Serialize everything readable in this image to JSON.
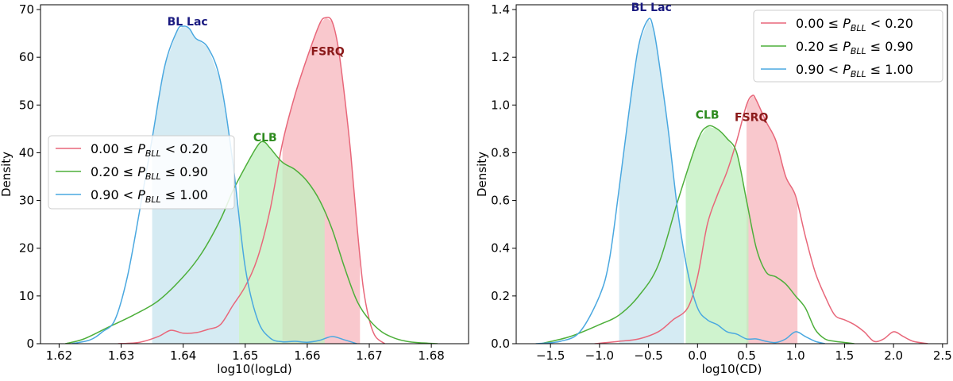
{
  "chart_data": [
    {
      "type": "area",
      "title": "",
      "xlabel": "log10(logLd)",
      "ylabel": "Density",
      "xlim": [
        1.617,
        1.686
      ],
      "ylim": [
        0,
        71
      ],
      "xticks": [
        1.62,
        1.63,
        1.64,
        1.65,
        1.66,
        1.67,
        1.68
      ],
      "yticks": [
        0,
        10,
        20,
        30,
        40,
        50,
        60,
        70
      ],
      "xtick_labels": [
        "1.62",
        "1.63",
        "1.64",
        "1.65",
        "1.66",
        "1.67",
        "1.68"
      ],
      "ytick_labels": [
        "0",
        "10",
        "20",
        "30",
        "40",
        "50",
        "60",
        "70"
      ],
      "legend_position": "center-left",
      "series": [
        {
          "id": "fsrq",
          "legend": {
            "range_low": "0.00 ≤ ",
            "var": "P",
            "sub": "BLL",
            "range_high": " < 0.20"
          },
          "color": "#e8677a",
          "fill": "#f7b9bf",
          "shade_range": [
            1.656,
            1.6685
          ],
          "x": [
            1.6295,
            1.633,
            1.636,
            1.638,
            1.64,
            1.642,
            1.644,
            1.646,
            1.648,
            1.65,
            1.652,
            1.654,
            1.656,
            1.658,
            1.66,
            1.662,
            1.663,
            1.664,
            1.665,
            1.666,
            1.667,
            1.668,
            1.669,
            1.67,
            1.671,
            1.6725
          ],
          "y": [
            0,
            0.3,
            1.5,
            2.8,
            2.2,
            2.3,
            3,
            4,
            8,
            12,
            18,
            28,
            42,
            52,
            60,
            67,
            68.3,
            67.5,
            62,
            52,
            40,
            25,
            12,
            5,
            1.5,
            0
          ]
        },
        {
          "id": "clb",
          "legend": {
            "range_low": "0.20 ≤ ",
            "var": "P",
            "sub": "BLL",
            "range_high": " ≤ 0.90"
          },
          "color": "#4daf3a",
          "fill": "#c2f0c0",
          "shade_range": [
            1.649,
            1.6628
          ],
          "x": [
            1.621,
            1.624,
            1.628,
            1.632,
            1.636,
            1.64,
            1.643,
            1.646,
            1.648,
            1.65,
            1.652,
            1.653,
            1.654,
            1.656,
            1.658,
            1.66,
            1.662,
            1.664,
            1.666,
            1.668,
            1.67,
            1.672,
            1.674,
            1.676,
            1.678,
            1.681
          ],
          "y": [
            0,
            1,
            3.5,
            6,
            9,
            14,
            19,
            26,
            32,
            37,
            41.5,
            42.3,
            41,
            38,
            36.5,
            34,
            30,
            24,
            16,
            9,
            5,
            2.5,
            1.2,
            0.5,
            0.2,
            0
          ]
        },
        {
          "id": "bllac",
          "legend": {
            "range_low": "0.90 < ",
            "var": "P",
            "sub": "BLL",
            "range_high": " ≤ 1.00"
          },
          "color": "#4aa8e0",
          "fill": "#c9e5f0",
          "shade_range": [
            1.635,
            1.649
          ],
          "x": [
            1.622,
            1.625,
            1.627,
            1.629,
            1.631,
            1.633,
            1.635,
            1.637,
            1.639,
            1.64,
            1.641,
            1.642,
            1.644,
            1.646,
            1.648,
            1.65,
            1.652,
            1.654,
            1.656,
            1.658,
            1.66,
            1.662,
            1.664,
            1.666,
            1.668
          ],
          "y": [
            0,
            0.8,
            2.5,
            5,
            14,
            28,
            43,
            58,
            65.5,
            66.5,
            66,
            64,
            62,
            55,
            38,
            16,
            5,
            1.2,
            0.4,
            0.5,
            0.3,
            0.7,
            1.5,
            0.8,
            0
          ]
        }
      ],
      "annotations": [
        {
          "text": "BL Lac",
          "x": 1.6407,
          "y": 67.5,
          "color": "#1a1a80"
        },
        {
          "text": "FSRQ",
          "x": 1.6633,
          "y": 61.3,
          "color": "#8b1a1a"
        },
        {
          "text": "CLB",
          "x": 1.6532,
          "y": 43.2,
          "color": "#2e8b1f"
        }
      ]
    },
    {
      "type": "area",
      "title": "",
      "xlabel": "log10(CD)",
      "ylabel": "Density",
      "xlim": [
        -1.85,
        2.55
      ],
      "ylim": [
        0,
        1.42
      ],
      "xticks": [
        -1.5,
        -1.0,
        -0.5,
        0.0,
        0.5,
        1.0,
        1.5,
        2.0,
        2.5
      ],
      "yticks": [
        0.0,
        0.2,
        0.4,
        0.6,
        0.8,
        1.0,
        1.2,
        1.4
      ],
      "xtick_labels": [
        "−1.5",
        "−1.0",
        "−0.5",
        "0.0",
        "0.5",
        "1.0",
        "1.5",
        "2.0",
        "2.5"
      ],
      "ytick_labels": [
        "0.0",
        "0.2",
        "0.4",
        "0.6",
        "0.8",
        "1.0",
        "1.2",
        "1.4"
      ],
      "legend_position": "upper right",
      "series": [
        {
          "id": "fsrq",
          "legend": {
            "range_low": "0.00 ≤ ",
            "var": "P",
            "sub": "BLL",
            "range_high": " < 0.20"
          },
          "color": "#e8677a",
          "fill": "#f7b9bf",
          "shade_range": [
            0.5,
            1.02
          ],
          "x": [
            -1.05,
            -0.8,
            -0.6,
            -0.4,
            -0.25,
            -0.1,
            0.0,
            0.1,
            0.2,
            0.3,
            0.4,
            0.5,
            0.56,
            0.6,
            0.7,
            0.8,
            0.9,
            1.0,
            1.1,
            1.2,
            1.3,
            1.4,
            1.5,
            1.6,
            1.7,
            1.8,
            1.9,
            2.0,
            2.1,
            2.2,
            2.35
          ],
          "y": [
            0,
            0.01,
            0.02,
            0.05,
            0.1,
            0.15,
            0.28,
            0.5,
            0.62,
            0.72,
            0.85,
            1.0,
            1.04,
            1.02,
            0.93,
            0.85,
            0.7,
            0.62,
            0.45,
            0.3,
            0.2,
            0.12,
            0.1,
            0.08,
            0.05,
            0.01,
            0.02,
            0.05,
            0.03,
            0.01,
            0
          ]
        },
        {
          "id": "clb",
          "legend": {
            "range_low": "0.20 ≤ ",
            "var": "P",
            "sub": "BLL",
            "range_high": " ≤ 0.90"
          },
          "color": "#4daf3a",
          "fill": "#c2f0c0",
          "shade_range": [
            -0.12,
            0.52
          ],
          "x": [
            -1.6,
            -1.3,
            -1.0,
            -0.8,
            -0.6,
            -0.4,
            -0.2,
            0.0,
            0.1,
            0.2,
            0.3,
            0.4,
            0.5,
            0.6,
            0.7,
            0.8,
            0.9,
            1.0,
            1.1,
            1.2,
            1.3,
            1.4,
            1.5,
            1.6
          ],
          "y": [
            0,
            0.03,
            0.08,
            0.12,
            0.2,
            0.33,
            0.6,
            0.85,
            0.91,
            0.9,
            0.86,
            0.8,
            0.6,
            0.4,
            0.3,
            0.28,
            0.25,
            0.2,
            0.15,
            0.06,
            0.02,
            0.01,
            0.005,
            0
          ]
        },
        {
          "id": "bllac",
          "legend": {
            "range_low": "0.90 < ",
            "var": "P",
            "sub": "BLL",
            "range_high": " ≤ 1.00"
          },
          "color": "#4aa8e0",
          "fill": "#c9e5f0",
          "shade_range": [
            -0.8,
            -0.14
          ],
          "x": [
            -1.65,
            -1.4,
            -1.2,
            -1.0,
            -0.9,
            -0.8,
            -0.7,
            -0.6,
            -0.5,
            -0.45,
            -0.4,
            -0.3,
            -0.2,
            -0.1,
            0.0,
            0.1,
            0.2,
            0.3,
            0.4,
            0.5,
            0.6,
            0.7,
            0.8,
            0.9,
            1.0,
            1.1,
            1.2,
            1.3
          ],
          "y": [
            0,
            0.01,
            0.05,
            0.2,
            0.35,
            0.65,
            0.97,
            1.25,
            1.36,
            1.32,
            1.2,
            0.9,
            0.55,
            0.3,
            0.15,
            0.1,
            0.08,
            0.05,
            0.04,
            0.02,
            0.02,
            0.01,
            0.005,
            0.02,
            0.05,
            0.03,
            0.01,
            0
          ]
        }
      ],
      "annotations": [
        {
          "text": "BL Lac",
          "x": -0.47,
          "y": 1.41,
          "color": "#1a1a80"
        },
        {
          "text": "CLB",
          "x": 0.1,
          "y": 0.96,
          "color": "#2e8b1f"
        },
        {
          "text": "FSRQ",
          "x": 0.55,
          "y": 0.95,
          "color": "#8b1a1a"
        }
      ]
    }
  ]
}
